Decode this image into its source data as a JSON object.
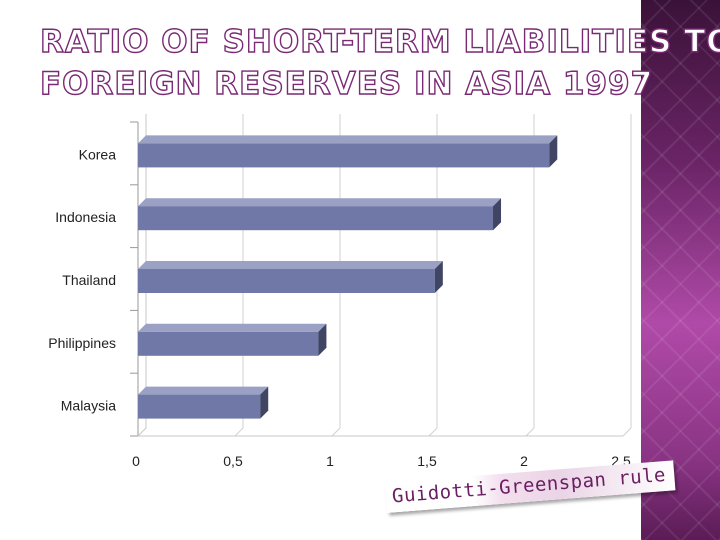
{
  "slide": {
    "title_line_1": "RATIO OF SHORT-TERM LIABILITIES TO",
    "title_line_2": "FOREIGN RESERVES IN ASIA 1997",
    "stamp_text": "Guidotti-Greenspan rule",
    "accent_color": "#7a2a74",
    "side_panel_color": "#b04aa8"
  },
  "chart_data": {
    "type": "bar",
    "orientation": "horizontal",
    "categories": [
      "Korea",
      "Indonesia",
      "Thailand",
      "Philippines",
      "Malaysia"
    ],
    "values": [
      2.12,
      1.83,
      1.53,
      0.93,
      0.63
    ],
    "xlim": [
      0,
      2.5
    ],
    "x_ticks": [
      "0",
      "0,5",
      "1",
      "1,5",
      "2",
      "2,5"
    ],
    "bar_color": "#6f78a6",
    "grid": true,
    "title": "",
    "xlabel": "",
    "ylabel": ""
  }
}
